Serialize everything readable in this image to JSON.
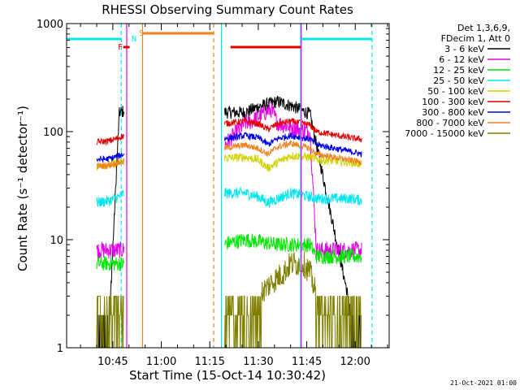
{
  "chart_data": {
    "type": "line",
    "title": "RHESSI Observing Summary Count Rates",
    "xlabel": "Start Time (15-Oct-14 10:30:42)",
    "ylabel": "Count Rate (s⁻¹ detector⁻¹)",
    "yscale": "log",
    "ylim": [
      1,
      1000
    ],
    "xlim": [
      "10:30:42",
      "12:10:30"
    ],
    "x_tick_labels": [
      "10:45",
      "11:00",
      "11:15",
      "11:30",
      "11:45",
      "12:00"
    ],
    "x_tick_minutes": [
      45,
      60,
      75,
      90,
      105,
      120
    ],
    "y_tick_labels": [
      "1",
      "10",
      "100",
      "1000"
    ],
    "legend_header": [
      "Det 1,3,6,9,",
      "FDecim 1, Att 0"
    ],
    "legend_position": "right, outside plot",
    "footer": "21-Oct-2021 01:00",
    "markers": [
      {
        "label": "F",
        "color": "#e00000"
      },
      {
        "label": "N",
        "color": "#00e5ee"
      },
      {
        "label": "S",
        "color": "#f08020"
      }
    ],
    "series": [
      {
        "name": "3 - 6 keV",
        "color": "#000000",
        "values": [
          [
            40,
            2
          ],
          [
            44,
            2
          ],
          [
            47,
            150
          ],
          [
            48.5,
            155
          ],
          [
            86,
            150
          ],
          [
            90,
            170
          ],
          [
            96,
            190
          ],
          [
            101,
            170
          ],
          [
            106,
            145
          ],
          [
            119,
            2
          ],
          [
            122,
            2
          ]
        ]
      },
      {
        "name": "6 - 12 keV",
        "color": "#e600e6",
        "values": [
          [
            40,
            8
          ],
          [
            44,
            8
          ],
          [
            47,
            8
          ],
          [
            48.5,
            8
          ],
          [
            86,
            120
          ],
          [
            88,
            125
          ],
          [
            92,
            150
          ],
          [
            94,
            160
          ],
          [
            96,
            120
          ],
          [
            100,
            110
          ],
          [
            106,
            100
          ],
          [
            108,
            8
          ],
          [
            119,
            8
          ],
          [
            122,
            8
          ]
        ]
      },
      {
        "name": "12 - 25 keV",
        "color": "#00e600",
        "values": [
          [
            40,
            6
          ],
          [
            44,
            6
          ],
          [
            47,
            6
          ],
          [
            48.5,
            6
          ],
          [
            86,
            10
          ],
          [
            96,
            9
          ],
          [
            106,
            9
          ],
          [
            108,
            7
          ],
          [
            119,
            7
          ],
          [
            122,
            7
          ]
        ]
      },
      {
        "name": "25 - 50 keV",
        "color": "#00e5ee",
        "values": [
          [
            40,
            22
          ],
          [
            44,
            23
          ],
          [
            47,
            25
          ],
          [
            48.5,
            27
          ],
          [
            86,
            27
          ],
          [
            90,
            25
          ],
          [
            93,
            22
          ],
          [
            96,
            24
          ],
          [
            100,
            27
          ],
          [
            106,
            25
          ],
          [
            108,
            24
          ],
          [
            119,
            24
          ],
          [
            122,
            23
          ]
        ]
      },
      {
        "name": "50 - 100 keV",
        "color": "#d2d200",
        "values": [
          [
            40,
            48
          ],
          [
            44,
            49
          ],
          [
            47,
            52
          ],
          [
            48.5,
            53
          ],
          [
            86,
            58
          ],
          [
            90,
            55
          ],
          [
            93,
            46
          ],
          [
            96,
            52
          ],
          [
            100,
            60
          ],
          [
            106,
            58
          ],
          [
            108,
            55
          ],
          [
            119,
            52
          ],
          [
            122,
            50
          ]
        ]
      },
      {
        "name": "100 - 300 keV",
        "color": "#e00000",
        "values": [
          [
            40,
            80
          ],
          [
            44,
            82
          ],
          [
            47,
            88
          ],
          [
            48.5,
            92
          ],
          [
            86,
            125
          ],
          [
            90,
            118
          ],
          [
            93,
            105
          ],
          [
            96,
            118
          ],
          [
            100,
            125
          ],
          [
            106,
            115
          ],
          [
            108,
            100
          ],
          [
            119,
            87
          ],
          [
            122,
            85
          ]
        ]
      },
      {
        "name": "300 - 800 keV",
        "color": "#0000e6",
        "values": [
          [
            40,
            55
          ],
          [
            44,
            56
          ],
          [
            47,
            60
          ],
          [
            48.5,
            62
          ],
          [
            86,
            92
          ],
          [
            90,
            88
          ],
          [
            93,
            76
          ],
          [
            96,
            86
          ],
          [
            100,
            92
          ],
          [
            106,
            85
          ],
          [
            108,
            76
          ],
          [
            119,
            65
          ],
          [
            122,
            62
          ]
        ]
      },
      {
        "name": "800 - 7000 keV",
        "color": "#f08020",
        "values": [
          [
            40,
            48
          ],
          [
            44,
            49
          ],
          [
            47,
            52
          ],
          [
            48.5,
            53
          ],
          [
            86,
            75
          ],
          [
            90,
            70
          ],
          [
            93,
            62
          ],
          [
            96,
            72
          ],
          [
            100,
            78
          ],
          [
            106,
            70
          ],
          [
            108,
            62
          ],
          [
            119,
            54
          ],
          [
            122,
            52
          ]
        ]
      },
      {
        "name": "7000 - 15000 keV",
        "color": "#808000",
        "values": [
          [
            40,
            3
          ],
          [
            44,
            3
          ],
          [
            47,
            3
          ],
          [
            48.5,
            3
          ],
          [
            86,
            3
          ],
          [
            90,
            3
          ],
          [
            94,
            4
          ],
          [
            98,
            5
          ],
          [
            100,
            6
          ],
          [
            104,
            6
          ],
          [
            106,
            5
          ],
          [
            108,
            3
          ],
          [
            119,
            3
          ],
          [
            122,
            3
          ]
        ]
      }
    ],
    "vertical_lines": [
      {
        "minute": 47.6,
        "color": "#00e5ee",
        "style": "dashed"
      },
      {
        "minute": 49.3,
        "color": "#e600e6",
        "style": "solid"
      },
      {
        "minute": 54.2,
        "color": "#f08020",
        "style": "solid"
      },
      {
        "minute": 76.2,
        "color": "#f08020",
        "style": "dashed"
      },
      {
        "minute": 78.6,
        "color": "#00e5ee",
        "style": "solid"
      },
      {
        "minute": 103.1,
        "color": "#00e5ee",
        "style": "solid"
      },
      {
        "minute": 103.3,
        "color": "#e600e6",
        "style": "solid"
      },
      {
        "minute": 125.2,
        "color": "#00e5ee",
        "style": "dashed"
      }
    ],
    "night_bars": [
      {
        "start": 30.7,
        "end": 47.6,
        "color": "#00e5ee"
      },
      {
        "start": 103.3,
        "end": 125.2,
        "color": "#00e5ee"
      }
    ],
    "saa_bars": [
      {
        "start": 54.2,
        "end": 76.2,
        "color": "#f08020"
      }
    ],
    "flare_bars": [
      {
        "start": 48.2,
        "end": 50.2,
        "color": "#e00000"
      },
      {
        "start": 81.4,
        "end": 103.1,
        "color": "#e00000"
      }
    ]
  }
}
